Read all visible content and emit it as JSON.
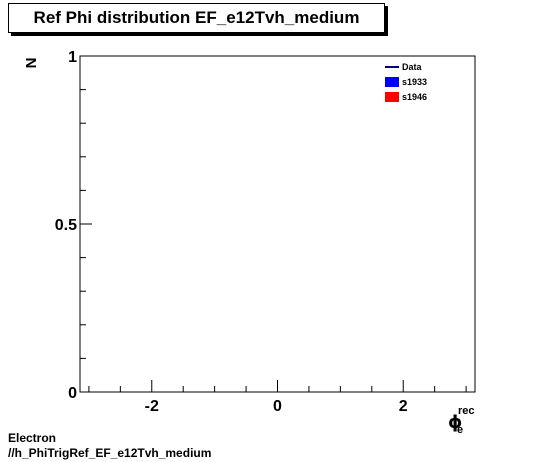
{
  "chart_data": {
    "type": "line",
    "title": "Ref Phi distribution EF_e12Tvh_medium",
    "ylabel": "N",
    "xlabel_main": "ϕ",
    "xlabel_sup": "rec",
    "xlabel_sub": "e",
    "xlim": [
      -3.14159,
      3.14159
    ],
    "ylim": [
      0,
      1
    ],
    "x_ticks": [
      -2,
      0,
      2
    ],
    "x_tick_labels": [
      "-2",
      "0",
      "2"
    ],
    "y_ticks": [
      0,
      0.5,
      1
    ],
    "y_tick_labels": [
      "0",
      "0.5",
      "1"
    ],
    "grid": false,
    "legend_position": "top-right",
    "series": [
      {
        "name": "Data",
        "style": "line",
        "color": "#000080",
        "values": []
      },
      {
        "name": "s1933",
        "style": "fill",
        "color": "#0000ff",
        "values": []
      },
      {
        "name": "s1946",
        "style": "fill",
        "color": "#ff0000",
        "values": []
      }
    ]
  },
  "footer": {
    "line1": "Electron",
    "line2": "//h_PhiTrigRef_EF_e12Tvh_medium"
  }
}
